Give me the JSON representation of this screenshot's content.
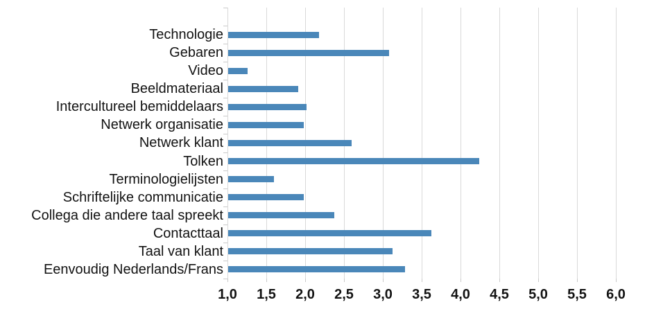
{
  "chart_data": {
    "type": "bar",
    "orientation": "horizontal",
    "title": "",
    "xlabel": "",
    "ylabel": "",
    "categories": [
      "Technologie",
      "Gebaren",
      "Video",
      "Beeldmateriaal",
      "Intercultureel bemiddelaars",
      "Netwerk organisatie",
      "Netwerk klant",
      "Tolken",
      "Terminologielijsten",
      "Schriftelijke communicatie",
      "Collega die andere taal spreekt",
      "Contacttaal",
      "Taal van klant",
      "Eenvoudig Nederlands/Frans"
    ],
    "values": [
      2.17,
      3.07,
      1.25,
      1.9,
      2.01,
      1.97,
      2.59,
      4.23,
      1.59,
      1.97,
      2.37,
      3.62,
      3.12,
      3.28
    ],
    "xlim": [
      1.0,
      6.0
    ],
    "x_tick_step": 0.5,
    "x_tick_labels": [
      "1,0",
      "1,5",
      "2,0",
      "2,5",
      "3,0",
      "3,5",
      "4,0",
      "4,5",
      "5,0",
      "5,5",
      "6,0"
    ],
    "grid": true,
    "legend": false,
    "bar_color": "#4a87b9",
    "gridline_color": "#d9d9d9",
    "tick_color": "#c9c9c9",
    "text_color": "#121212"
  }
}
